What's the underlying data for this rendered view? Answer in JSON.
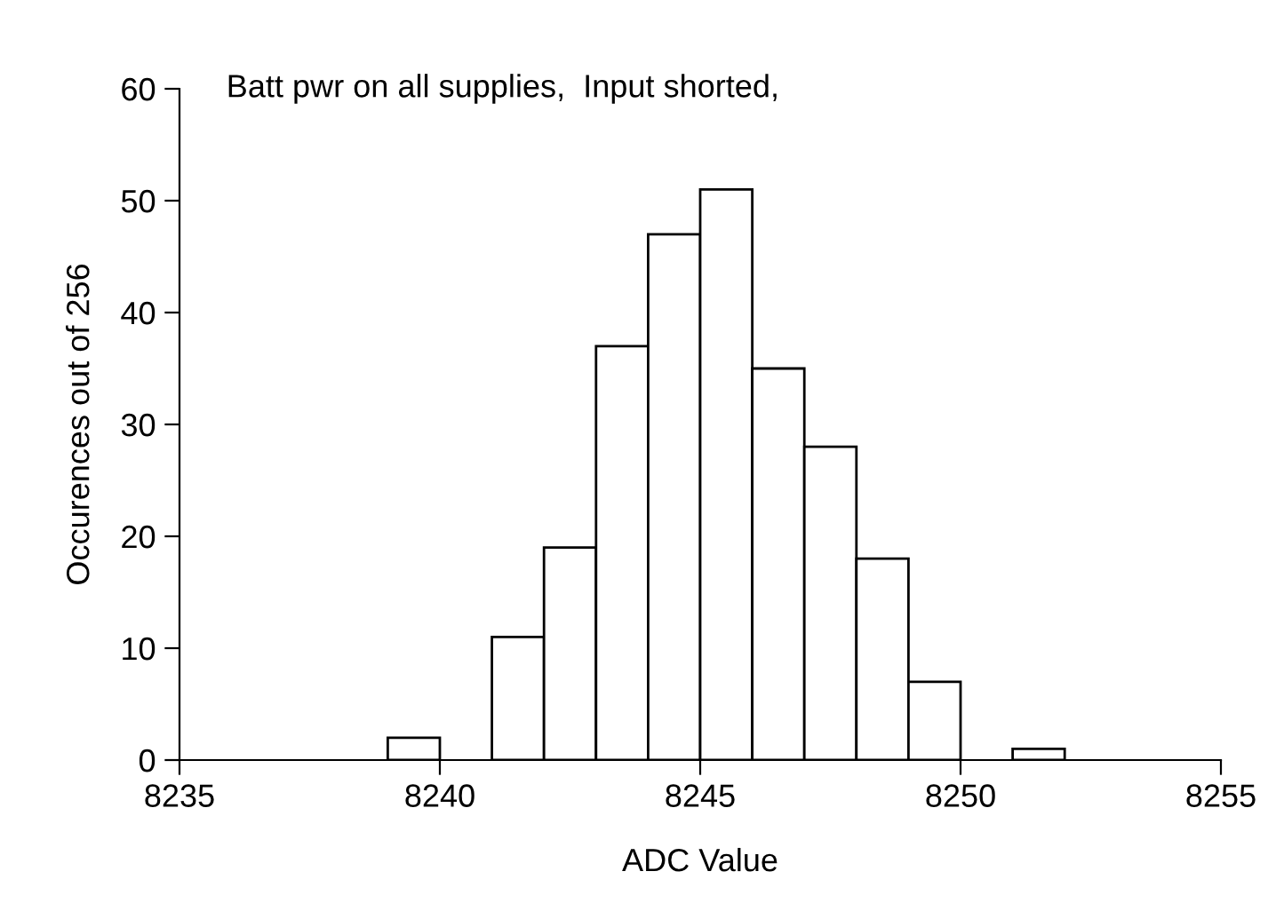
{
  "chart_data": {
    "type": "histogram",
    "title": "Batt pwr on all supplies,  Input shorted,",
    "xlabel": "ADC Value",
    "ylabel": "Occurences out of 256",
    "bins": [
      8239,
      8240,
      8241,
      8242,
      8243,
      8244,
      8245,
      8246,
      8247,
      8248,
      8249,
      8250,
      8251,
      8252
    ],
    "values": [
      2,
      0,
      11,
      19,
      37,
      47,
      51,
      35,
      28,
      18,
      7,
      0,
      1
    ],
    "color": "#ffffff",
    "xlim": [
      8235,
      8255
    ],
    "xticks": [
      8235,
      8240,
      8245,
      8250,
      8255
    ],
    "ylim": [
      0,
      60
    ],
    "yticks": [
      0,
      10,
      20,
      30,
      40,
      50,
      60
    ],
    "grid": false,
    "legend": false
  }
}
